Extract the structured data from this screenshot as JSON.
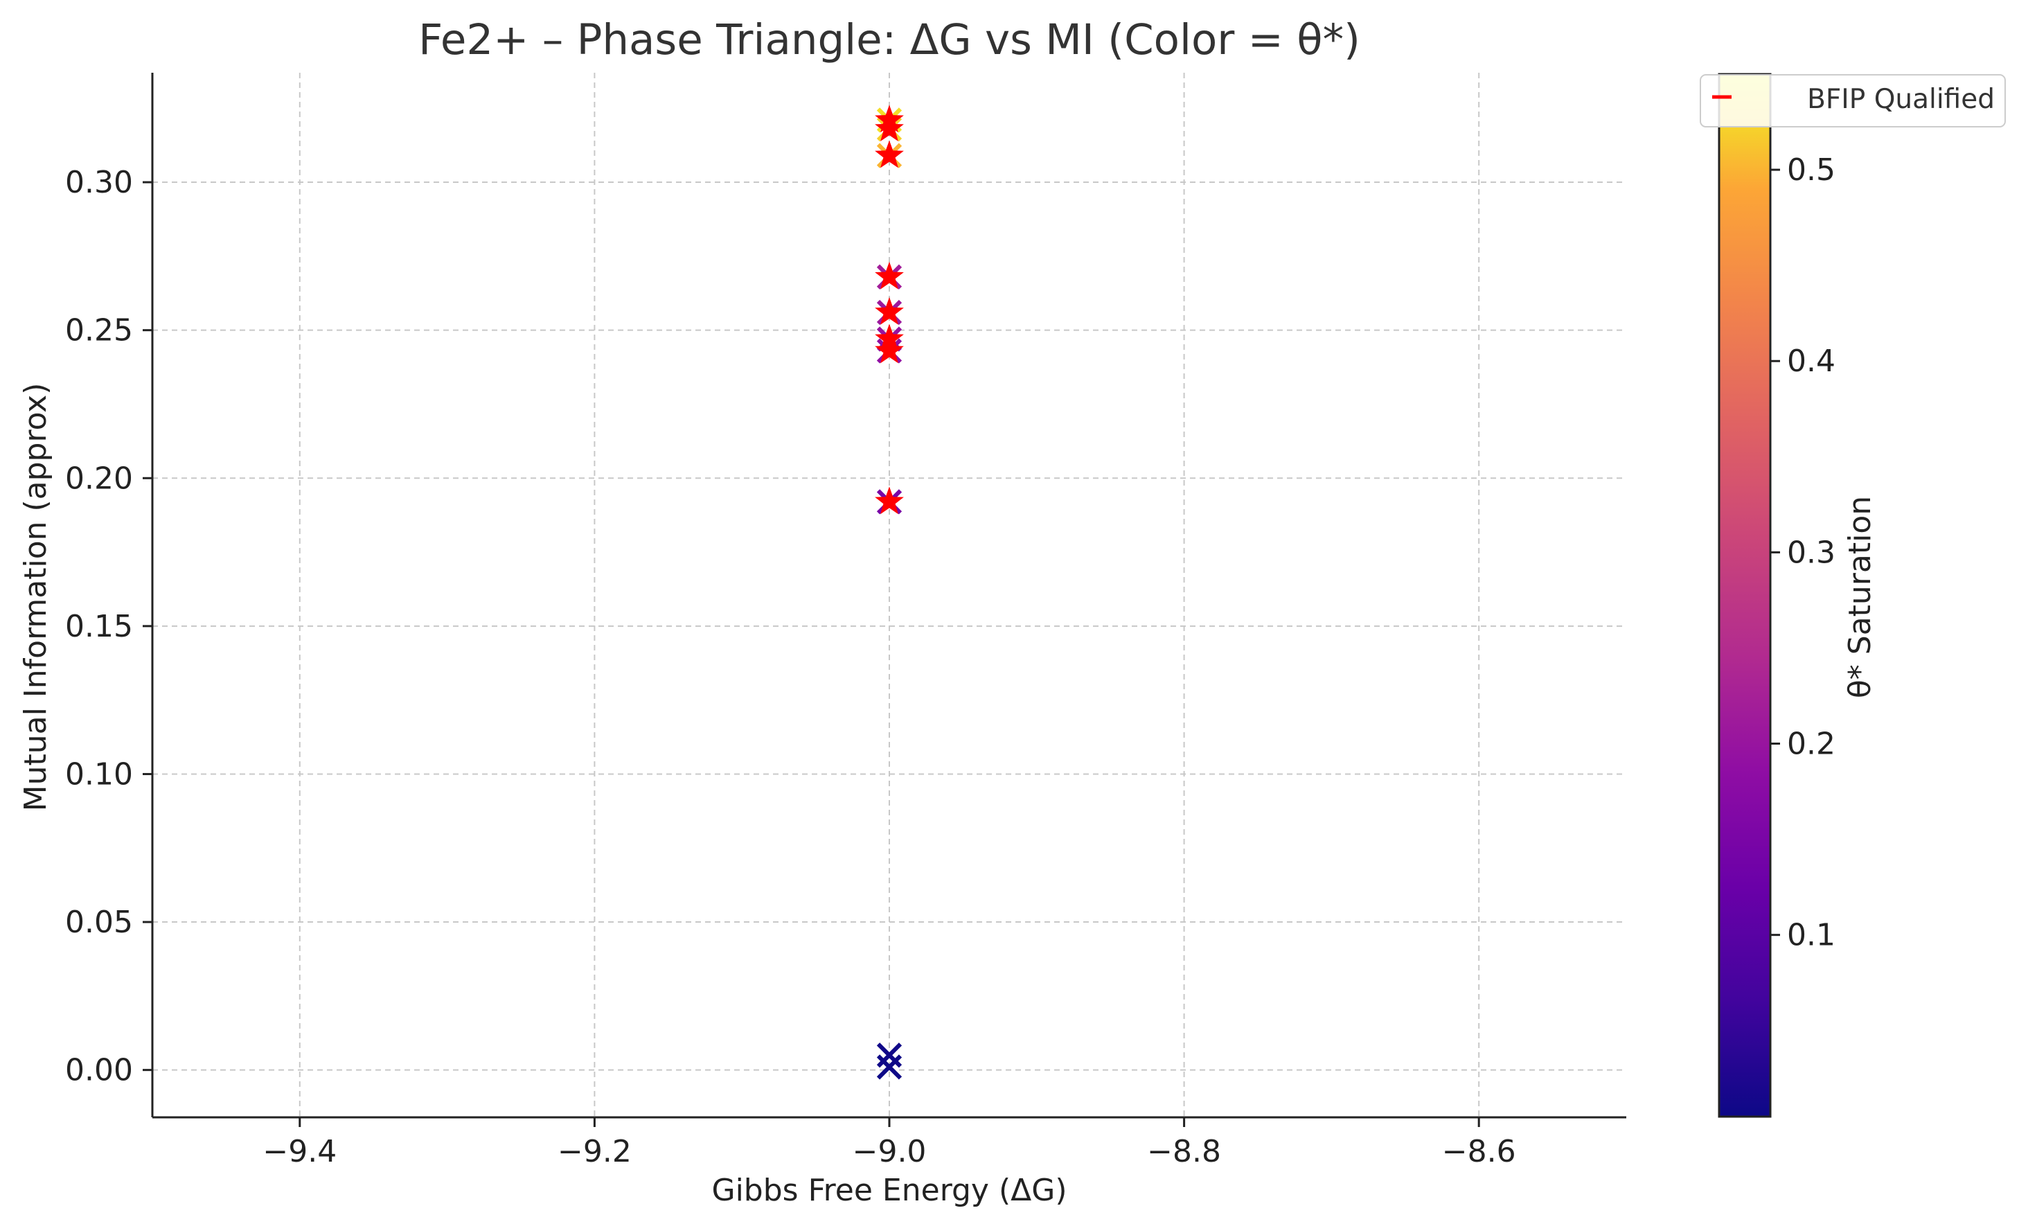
{
  "chart_data": {
    "type": "scatter",
    "title": "Fe2+ – Phase Triangle: ΔG vs MI (Color = θ*)",
    "xlabel": "Gibbs Free Energy (ΔG)",
    "ylabel": "Mutual Information (approx)",
    "xlim": [
      -9.5,
      -8.5
    ],
    "ylim": [
      -0.016,
      0.337
    ],
    "xticks": [
      -9.4,
      -9.2,
      -9.0,
      -8.8,
      -8.6
    ],
    "xtick_labels": [
      "−9.4",
      "−9.2",
      "−9.0",
      "−8.8",
      "−8.6"
    ],
    "yticks": [
      0.0,
      0.05,
      0.1,
      0.15,
      0.2,
      0.25,
      0.3
    ],
    "ytick_labels": [
      "0.00",
      "0.05",
      "0.10",
      "0.15",
      "0.20",
      "0.25",
      "0.30"
    ],
    "grid": true,
    "colormap": "plasma",
    "colorbar": {
      "label": "θ* Saturation",
      "range": [
        0.005,
        0.55
      ],
      "ticks": [
        0.1,
        0.2,
        0.3,
        0.4,
        0.5
      ],
      "tick_labels": [
        "0.1",
        "0.2",
        "0.3",
        "0.4",
        "0.5"
      ]
    },
    "legend": {
      "position": "top-right",
      "entries": [
        {
          "label": "BFIP Qualified",
          "marker": "star",
          "color": "#ff0000"
        }
      ]
    },
    "series": [
      {
        "name": "",
        "marker": "x",
        "points": [
          {
            "x": -9.0,
            "y": 0.321,
            "theta": 0.53
          },
          {
            "x": -9.0,
            "y": 0.318,
            "theta": 0.52
          },
          {
            "x": -9.0,
            "y": 0.309,
            "theta": 0.5
          },
          {
            "x": -9.0,
            "y": 0.268,
            "theta": 0.22
          },
          {
            "x": -9.0,
            "y": 0.256,
            "theta": 0.21
          },
          {
            "x": -9.0,
            "y": 0.247,
            "theta": 0.2
          },
          {
            "x": -9.0,
            "y": 0.243,
            "theta": 0.19
          },
          {
            "x": -9.0,
            "y": 0.192,
            "theta": 0.15
          },
          {
            "x": -9.0,
            "y": 0.005,
            "theta": 0.01
          },
          {
            "x": -9.0,
            "y": 0.001,
            "theta": 0.006
          }
        ]
      },
      {
        "name": "BFIP Qualified",
        "marker": "star",
        "color": "#ff0000",
        "points": [
          {
            "x": -9.0,
            "y": 0.321
          },
          {
            "x": -9.0,
            "y": 0.318
          },
          {
            "x": -9.0,
            "y": 0.309
          },
          {
            "x": -9.0,
            "y": 0.268
          },
          {
            "x": -9.0,
            "y": 0.256
          },
          {
            "x": -9.0,
            "y": 0.247
          },
          {
            "x": -9.0,
            "y": 0.243
          },
          {
            "x": -9.0,
            "y": 0.192
          }
        ]
      }
    ]
  }
}
